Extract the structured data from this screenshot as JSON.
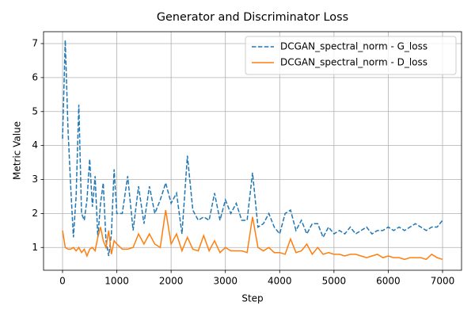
{
  "chart_data": {
    "type": "line",
    "title": "Generator and Discriminator Loss",
    "x_label": "Step",
    "y_label": "Metric Value",
    "x": [
      0,
      50,
      100,
      150,
      200,
      250,
      300,
      350,
      400,
      450,
      500,
      550,
      600,
      650,
      700,
      750,
      800,
      850,
      900,
      950,
      1000,
      1100,
      1200,
      1300,
      1400,
      1500,
      1600,
      1700,
      1800,
      1900,
      2000,
      2100,
      2200,
      2300,
      2400,
      2500,
      2600,
      2700,
      2800,
      2900,
      3000,
      3100,
      3200,
      3300,
      3400,
      3500,
      3600,
      3700,
      3800,
      3900,
      4000,
      4100,
      4200,
      4300,
      4400,
      4500,
      4600,
      4700,
      4800,
      4900,
      5000,
      5100,
      5200,
      5300,
      5400,
      5500,
      5600,
      5700,
      5800,
      5900,
      6000,
      6100,
      6200,
      6300,
      6400,
      6500,
      6600,
      6700,
      6800,
      6900,
      7000
    ],
    "series": [
      {
        "name": "DCGAN_spectral_norm - G_loss",
        "color": "#1f77b4",
        "linestyle": "dashed",
        "values": [
          4.2,
          7.1,
          4.5,
          2.8,
          1.3,
          2.5,
          5.2,
          2.0,
          1.8,
          2.4,
          3.6,
          2.2,
          3.1,
          1.3,
          2.3,
          2.9,
          1.2,
          0.75,
          1.4,
          3.3,
          2.0,
          2.0,
          3.1,
          1.5,
          2.8,
          1.7,
          2.8,
          2.0,
          2.4,
          2.9,
          2.3,
          2.6,
          1.4,
          3.7,
          2.1,
          1.8,
          1.9,
          1.8,
          2.6,
          1.8,
          2.4,
          2.0,
          2.3,
          1.8,
          1.8,
          3.2,
          1.6,
          1.7,
          2.0,
          1.6,
          1.4,
          2.0,
          2.1,
          1.5,
          1.8,
          1.4,
          1.7,
          1.7,
          1.3,
          1.6,
          1.4,
          1.5,
          1.4,
          1.6,
          1.4,
          1.5,
          1.6,
          1.4,
          1.5,
          1.5,
          1.6,
          1.5,
          1.6,
          1.5,
          1.6,
          1.7,
          1.6,
          1.5,
          1.6,
          1.6,
          1.8
        ]
      },
      {
        "name": "DCGAN_spectral_norm - D_loss",
        "color": "#ff7f0e",
        "linestyle": "solid",
        "values": [
          1.5,
          1.0,
          0.95,
          0.95,
          1.0,
          0.9,
          1.0,
          0.85,
          0.95,
          0.75,
          0.95,
          1.0,
          0.9,
          1.3,
          1.6,
          1.2,
          1.0,
          1.5,
          0.8,
          1.2,
          1.1,
          0.95,
          0.95,
          1.0,
          1.4,
          1.1,
          1.4,
          1.1,
          1.0,
          2.1,
          1.1,
          1.4,
          0.9,
          1.3,
          0.95,
          0.9,
          1.35,
          0.9,
          1.2,
          0.85,
          1.0,
          0.9,
          0.9,
          0.9,
          0.85,
          1.9,
          1.0,
          0.9,
          1.0,
          0.85,
          0.85,
          0.8,
          1.25,
          0.85,
          0.9,
          1.1,
          0.8,
          1.0,
          0.8,
          0.85,
          0.8,
          0.8,
          0.75,
          0.8,
          0.8,
          0.75,
          0.7,
          0.75,
          0.8,
          0.7,
          0.75,
          0.7,
          0.7,
          0.65,
          0.7,
          0.7,
          0.7,
          0.65,
          0.8,
          0.7,
          0.65
        ]
      }
    ],
    "xlim": [
      -350,
      7350
    ],
    "ylim": [
      0.33,
      7.35
    ],
    "xticks": [
      0,
      1000,
      2000,
      3000,
      4000,
      5000,
      6000,
      7000
    ],
    "yticks": [
      1,
      2,
      3,
      4,
      5,
      6,
      7
    ],
    "grid": true,
    "legend": "upper right"
  }
}
